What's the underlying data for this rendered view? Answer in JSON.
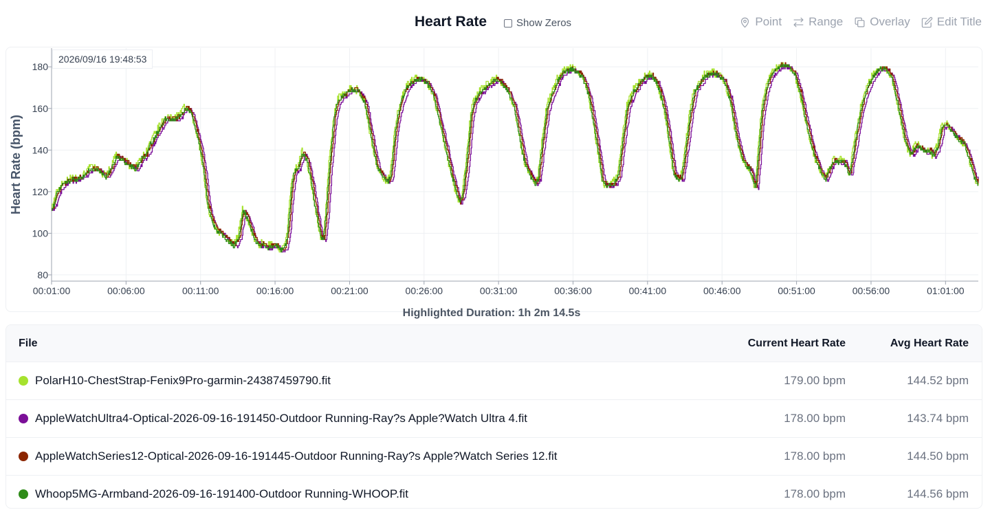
{
  "header": {
    "title": "Heart Rate",
    "show_zeros_label": "Show Zeros",
    "show_zeros_checked": false,
    "tools": [
      {
        "label": "Point",
        "icon": "map-pin-icon"
      },
      {
        "label": "Range",
        "icon": "arrows-left-right-icon"
      },
      {
        "label": "Overlay",
        "icon": "copy-icon"
      },
      {
        "label": "Edit Title",
        "icon": "edit-icon"
      }
    ]
  },
  "cursor_timestamp": "2026/09/16 19:48:53",
  "duration_text": "Highlighted Duration: 1h 2m 14.5s",
  "table": {
    "headers": {
      "file": "File",
      "current": "Current Heart Rate",
      "avg": "Avg Heart Rate"
    },
    "rows": [
      {
        "file": "PolarH10-ChestStrap-Fenix9Pro-garmin-24387459790.fit",
        "current": "179.00 bpm",
        "avg": "144.52 bpm",
        "color": "#a6e22e"
      },
      {
        "file": "AppleWatchUltra4-Optical-2026-09-16-191450-Outdoor Running-Ray?s Apple?Watch Ultra 4.fit",
        "current": "178.00 bpm",
        "avg": "143.74 bpm",
        "color": "#7b0f98"
      },
      {
        "file": "AppleWatchSeries12-Optical-2026-09-16-191445-Outdoor Running-Ray?s Apple?Watch Series 12.fit",
        "current": "178.00 bpm",
        "avg": "144.50 bpm",
        "color": "#8b2500"
      },
      {
        "file": "Whoop5MG-Armband-2026-09-16-191400-Outdoor Running-WHOOP.fit",
        "current": "178.00 bpm",
        "avg": "144.56 bpm",
        "color": "#2e8b18"
      }
    ]
  },
  "chart_data": {
    "type": "line",
    "title": "Heart Rate",
    "ylabel": "Heart Rate (bpm)",
    "xlabel": "",
    "ylim": [
      77,
      189
    ],
    "xlim_minutes": [
      1,
      63.2
    ],
    "yticks": [
      80,
      100,
      120,
      140,
      160,
      180
    ],
    "xticks": [
      "00:01:00",
      "00:06:00",
      "00:11:00",
      "00:16:00",
      "00:21:00",
      "00:26:00",
      "00:31:00",
      "00:36:00",
      "00:41:00",
      "00:46:00",
      "00:51:00",
      "00:56:00",
      "01:01:00"
    ],
    "grid": true,
    "cursor_x_minutes": 35.9,
    "base_curve": {
      "x_minutes": [
        1.0,
        1.3,
        1.6,
        2.0,
        2.5,
        3.0,
        3.3,
        3.6,
        4.0,
        4.3,
        4.6,
        5.0,
        5.3,
        5.6,
        5.9,
        6.3,
        6.6,
        7.0,
        7.3,
        7.6,
        8.0,
        8.3,
        8.6,
        9.0,
        9.3,
        9.6,
        9.9,
        10.1,
        10.3,
        10.5,
        10.8,
        11.0,
        11.2,
        11.4,
        11.7,
        12.0,
        12.3,
        12.6,
        12.9,
        13.2,
        13.5,
        13.8,
        14.1,
        14.3,
        14.6,
        14.9,
        15.1,
        15.4,
        15.7,
        16.0,
        16.3,
        16.6,
        16.8,
        17.0,
        17.2,
        17.5,
        17.8,
        18.1,
        18.4,
        18.6,
        18.8,
        19.0,
        19.2,
        19.4,
        19.6,
        19.9,
        20.1,
        20.3,
        20.5,
        20.7,
        21.0,
        21.3,
        21.6,
        22.0,
        22.4,
        22.8,
        23.1,
        23.3,
        23.5,
        23.7,
        24.0,
        24.2,
        24.4,
        24.7,
        25.0,
        25.4,
        25.8,
        26.2,
        26.6,
        27.0,
        27.4,
        27.8,
        28.1,
        28.3,
        28.5,
        28.8,
        29.1,
        29.3,
        29.6,
        30.0,
        30.4,
        30.8,
        31.2,
        31.6,
        32.0,
        32.4,
        32.7,
        33.0,
        33.2,
        33.4,
        33.6,
        33.9,
        34.2,
        34.6,
        35.0,
        35.4,
        35.8,
        36.2,
        36.6,
        37.0,
        37.4,
        37.7,
        37.9,
        38.1,
        38.4,
        38.7,
        39.0,
        39.3,
        39.6,
        40.0,
        40.4,
        40.8,
        41.2,
        41.6,
        42.0,
        42.3,
        42.5,
        42.7,
        42.9,
        43.2,
        43.5,
        43.8,
        44.1,
        44.5,
        44.9,
        45.3,
        45.7,
        46.1,
        46.5,
        46.9,
        47.3,
        47.6,
        47.8,
        48.0,
        48.2,
        48.4,
        48.6,
        48.9,
        49.2,
        49.6,
        50.0,
        50.4,
        50.8,
        51.2,
        51.6,
        52.0,
        52.3,
        52.5,
        52.7,
        52.9,
        53.2,
        53.5,
        53.8,
        54.1,
        54.5,
        54.9,
        55.3,
        55.7,
        56.1,
        56.5,
        56.9,
        57.3,
        57.7,
        58.0,
        58.2,
        58.4,
        58.6,
        58.8,
        59.0,
        59.3,
        59.6,
        59.9,
        60.1,
        60.4,
        60.7,
        61.0,
        61.3,
        61.6,
        61.9,
        62.2,
        62.5,
        62.8,
        63.0,
        63.2
      ],
      "y": [
        112,
        119,
        123,
        125,
        126,
        127,
        129,
        131,
        131,
        129,
        127,
        132,
        137,
        136,
        134,
        132,
        131,
        136,
        138,
        143,
        148,
        152,
        155,
        155,
        155,
        157,
        160,
        160,
        158,
        153,
        145,
        138,
        128,
        115,
        106,
        102,
        100,
        98,
        96,
        94,
        98,
        111,
        107,
        103,
        97,
        94,
        95,
        93,
        94,
        94,
        92,
        93,
        100,
        118,
        129,
        132,
        139,
        135,
        124,
        114,
        107,
        98,
        97,
        112,
        133,
        155,
        162,
        165,
        166,
        167,
        169,
        169,
        168,
        162,
        146,
        132,
        128,
        126,
        125,
        127,
        148,
        157,
        163,
        169,
        172,
        174,
        174,
        172,
        166,
        154,
        141,
        128,
        120,
        115,
        117,
        133,
        157,
        163,
        167,
        170,
        172,
        174,
        172,
        168,
        161,
        145,
        134,
        129,
        126,
        124,
        126,
        144,
        160,
        168,
        175,
        178,
        179,
        178,
        175,
        166,
        150,
        136,
        126,
        123,
        123,
        124,
        128,
        146,
        161,
        168,
        172,
        175,
        176,
        172,
        162,
        150,
        139,
        129,
        127,
        126,
        140,
        157,
        168,
        173,
        176,
        177,
        176,
        173,
        164,
        147,
        136,
        132,
        131,
        126,
        122,
        139,
        157,
        169,
        176,
        179,
        181,
        180,
        177,
        167,
        153,
        141,
        134,
        131,
        128,
        126,
        132,
        135,
        134,
        135,
        128,
        145,
        161,
        170,
        176,
        179,
        179,
        176,
        164,
        153,
        146,
        141,
        138,
        140,
        142,
        141,
        139,
        140,
        137,
        141,
        151,
        152,
        150,
        147,
        145,
        143,
        137,
        129,
        125,
        123
      ]
    },
    "series": [
      {
        "name": "PolarH10-ChestStrap-Fenix9Pro-garmin-24387459790.fit",
        "color": "#a6e22e",
        "lag_seconds": 0,
        "offset_bpm": 0.5,
        "noise_bpm": 1.8,
        "current": 179.0,
        "avg": 144.52
      },
      {
        "name": "AppleWatchUltra4-Optical-2026-09-16-191450-Outdoor Running-Ray?s Apple?Watch Ultra 4.fit",
        "color": "#7b0f98",
        "lag_seconds": 15,
        "offset_bpm": -0.6,
        "noise_bpm": 0.8,
        "current": 178.0,
        "avg": 143.74
      },
      {
        "name": "AppleWatchSeries12-Optical-2026-09-16-191445-Outdoor Running-Ray?s Apple?Watch Series 12.fit",
        "color": "#8b2500",
        "lag_seconds": 8,
        "offset_bpm": 0.3,
        "noise_bpm": 1.0,
        "current": 178.0,
        "avg": 144.5
      },
      {
        "name": "Whoop5MG-Armband-2026-09-16-191400-Outdoor Running-WHOOP.fit",
        "color": "#2e8b18",
        "lag_seconds": 3,
        "offset_bpm": -0.2,
        "noise_bpm": 1.0,
        "current": 178.0,
        "avg": 144.56
      }
    ]
  }
}
